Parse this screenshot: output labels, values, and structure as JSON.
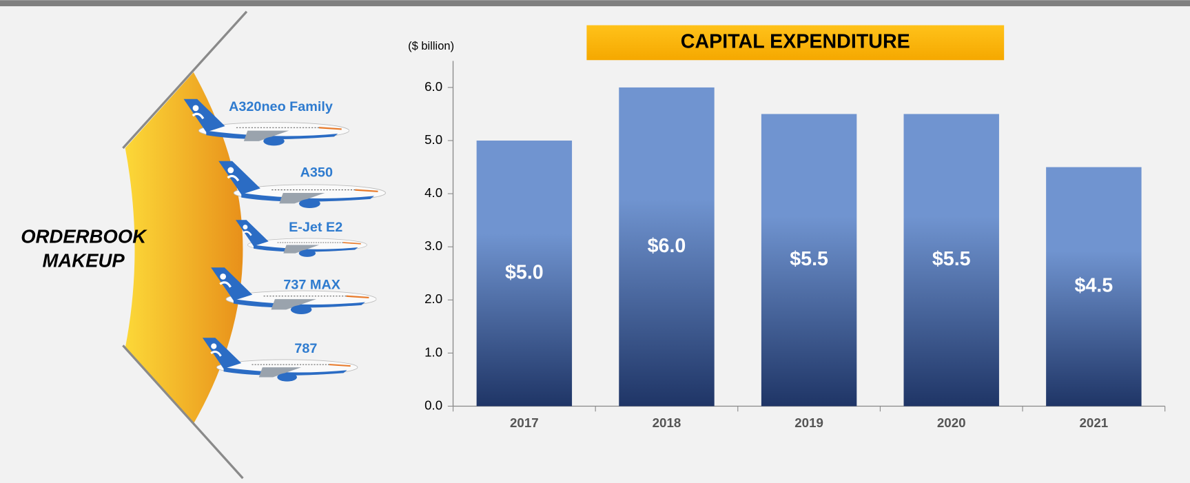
{
  "chart_data": {
    "type": "bar",
    "title": "CAPITAL EXPENDITURE",
    "y_axis_label": "($ billion)",
    "categories": [
      "2017",
      "2018",
      "2019",
      "2020",
      "2021"
    ],
    "values": [
      5.0,
      6.0,
      5.5,
      5.5,
      4.5
    ],
    "value_labels": [
      "$5.0",
      "$6.0",
      "$5.5",
      "$5.5",
      "$4.5"
    ],
    "color": [
      "#7094d0",
      "#1f3566"
    ],
    "ylim": [
      0,
      6.5
    ],
    "yticks": [
      {
        "value": 0,
        "label": "0.0"
      },
      {
        "value": 1,
        "label": "1.0"
      },
      {
        "value": 2,
        "label": "2.0"
      },
      {
        "value": 3,
        "label": "3.0"
      },
      {
        "value": 4,
        "label": "4.0"
      },
      {
        "value": 5,
        "label": "5.0"
      },
      {
        "value": 6,
        "label": "6.0"
      }
    ],
    "grid": false
  },
  "orderbook": {
    "title_lines": [
      "ORDERBOOK",
      "MAKEUP"
    ],
    "aircraft": [
      "A320neo Family",
      "A350",
      "E-Jet E2",
      "737 MAX",
      "787"
    ]
  }
}
